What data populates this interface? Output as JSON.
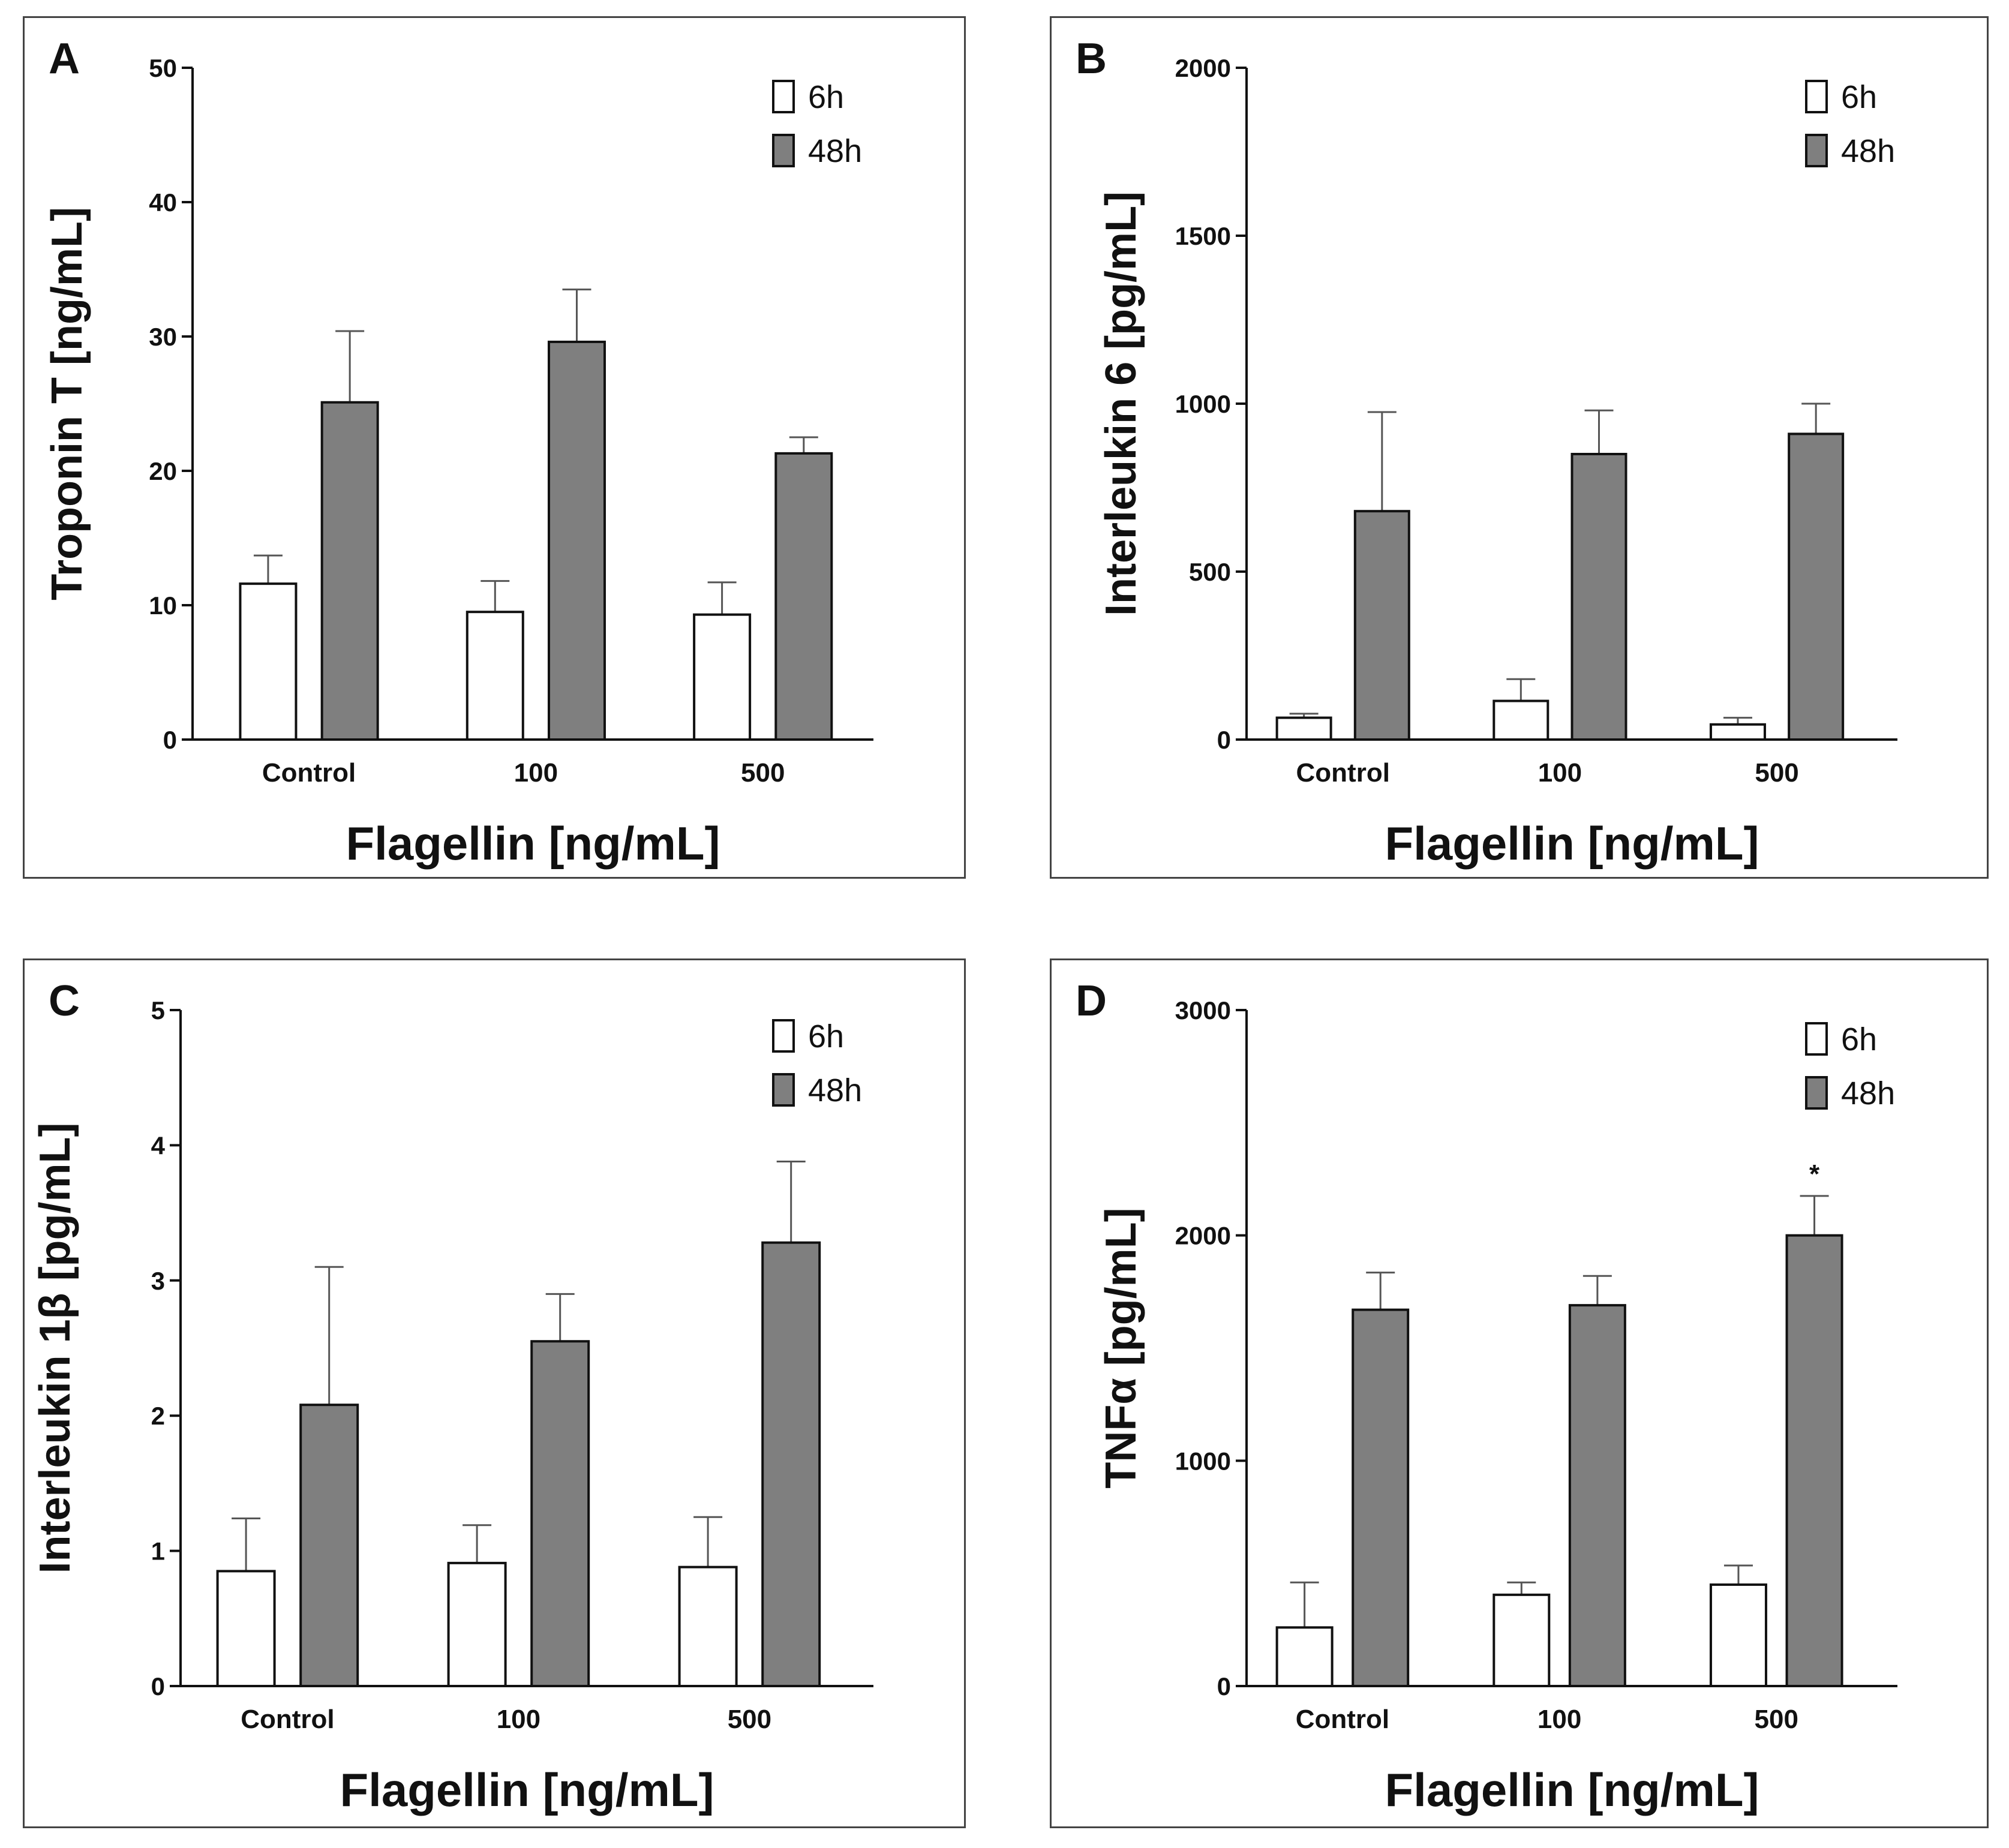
{
  "legend_labels": [
    "6h",
    "48h"
  ],
  "colors": {
    "white_bar": "#ffffff",
    "grey_bar": "#7f7f7f",
    "stroke": "#111111",
    "error": "#555555"
  },
  "chart_data": [
    {
      "panel": "A",
      "type": "bar",
      "ylabel": "Troponin T [ng/mL]",
      "xlabel": "Flagellin [ng/mL]",
      "categories": [
        "Control",
        "100",
        "500"
      ],
      "ylim": [
        0,
        50
      ],
      "yticks": [
        0,
        10,
        20,
        30,
        40,
        50
      ],
      "legend": "top-right",
      "series": [
        {
          "name": "6h",
          "values": [
            11.6,
            9.5,
            9.3
          ],
          "errors": [
            2.1,
            2.3,
            2.4
          ]
        },
        {
          "name": "48h",
          "values": [
            25.1,
            29.6,
            21.3
          ],
          "errors": [
            5.3,
            3.9,
            1.2
          ]
        }
      ],
      "annotations": []
    },
    {
      "panel": "B",
      "type": "bar",
      "ylabel": "Interleukin 6 [pg/mL]",
      "xlabel": "Flagellin [ng/mL]",
      "categories": [
        "Control",
        "100",
        "500"
      ],
      "ylim": [
        0,
        2000
      ],
      "yticks": [
        0,
        500,
        1000,
        1500,
        2000
      ],
      "legend": "top-right",
      "series": [
        {
          "name": "6h",
          "values": [
            65,
            115,
            45
          ],
          "errors": [
            12,
            65,
            20
          ]
        },
        {
          "name": "48h",
          "values": [
            680,
            850,
            910
          ],
          "errors": [
            295,
            130,
            90
          ]
        }
      ],
      "annotations": []
    },
    {
      "panel": "C",
      "type": "bar",
      "ylabel": "Interleukin 1β [pg/mL]",
      "xlabel": "Flagellin [ng/mL]",
      "categories": [
        "Control",
        "100",
        "500"
      ],
      "ylim": [
        0,
        5
      ],
      "yticks": [
        0,
        1,
        2,
        3,
        4,
        5
      ],
      "legend": "top-right",
      "series": [
        {
          "name": "6h",
          "values": [
            0.85,
            0.91,
            0.88
          ],
          "errors": [
            0.39,
            0.28,
            0.37
          ]
        },
        {
          "name": "48h",
          "values": [
            2.08,
            2.55,
            3.28
          ],
          "errors": [
            1.02,
            0.35,
            0.6
          ]
        }
      ],
      "annotations": []
    },
    {
      "panel": "D",
      "type": "bar",
      "ylabel": "TNFα [pg/mL]",
      "xlabel": "Flagellin [ng/mL]",
      "categories": [
        "Control",
        "100",
        "500"
      ],
      "ylim": [
        0,
        3000
      ],
      "yticks": [
        0,
        1000,
        2000,
        3000
      ],
      "legend": "top-right",
      "series": [
        {
          "name": "6h",
          "values": [
            260,
            405,
            450
          ],
          "errors": [
            200,
            55,
            85
          ]
        },
        {
          "name": "48h",
          "values": [
            1670,
            1690,
            2000
          ],
          "errors": [
            165,
            130,
            175
          ]
        }
      ],
      "annotations": [
        {
          "text": "*",
          "series": 1,
          "category": 2
        }
      ]
    }
  ]
}
